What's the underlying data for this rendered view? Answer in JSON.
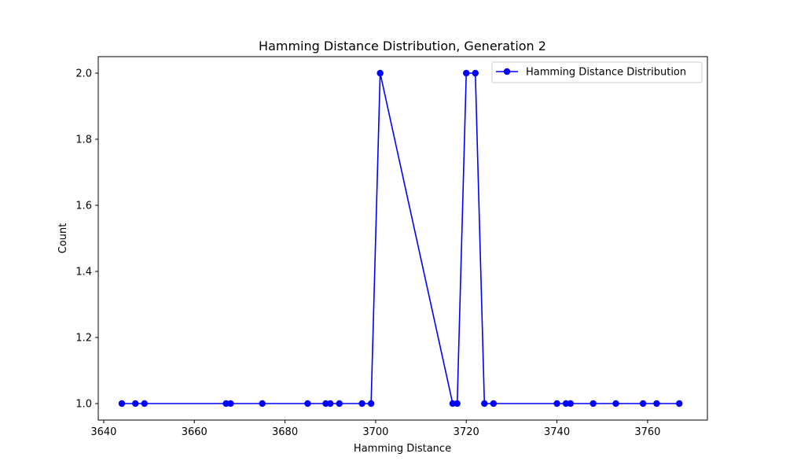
{
  "chart_data": {
    "type": "line",
    "title": "Hamming Distance Distribution, Generation 2",
    "xlabel": "Hamming Distance",
    "ylabel": "Count",
    "xlim": [
      3638.8,
      3773.2
    ],
    "ylim": [
      0.95,
      2.05
    ],
    "x_ticks": [
      3640,
      3660,
      3680,
      3700,
      3720,
      3740,
      3760
    ],
    "y_ticks": [
      1.0,
      1.2,
      1.4,
      1.6,
      1.8,
      2.0
    ],
    "grid": false,
    "legend_position": "upper right",
    "series": [
      {
        "name": "Hamming Distance Distribution",
        "color": "#0000ff",
        "marker": "circle",
        "x": [
          3644,
          3647,
          3649,
          3667,
          3668,
          3675,
          3685,
          3689,
          3690,
          3692,
          3697,
          3699,
          3701,
          3717,
          3718,
          3720,
          3722,
          3724,
          3726,
          3740,
          3742,
          3743,
          3748,
          3753,
          3759,
          3762,
          3767
        ],
        "y": [
          1,
          1,
          1,
          1,
          1,
          1,
          1,
          1,
          1,
          1,
          1,
          1,
          2,
          1,
          1,
          2,
          2,
          1,
          1,
          1,
          1,
          1,
          1,
          1,
          1,
          1,
          1
        ]
      }
    ]
  }
}
